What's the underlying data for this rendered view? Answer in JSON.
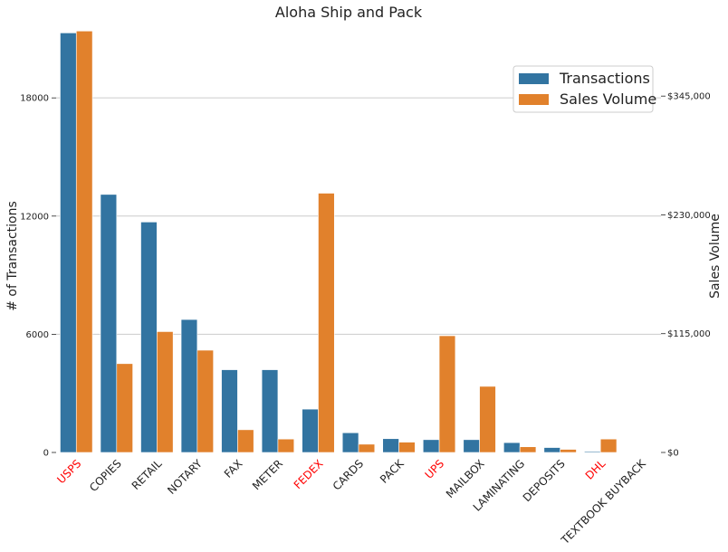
{
  "chart_data": {
    "type": "bar",
    "title": "Aloha Ship and Pack",
    "ylabel_left": "# of Transactions",
    "ylabel_right": "Sales Volume",
    "categories": [
      "USPS",
      "COPIES",
      "RETAIL",
      "NOTARY",
      "FAX",
      "METER",
      "FEDEX",
      "CARDS",
      "PACK",
      "UPS",
      "MAILBOX",
      "LAMINATING",
      "DEPOSITS",
      "DHL",
      "TEXTBOOK BUYBACK"
    ],
    "highlighted_categories": [
      "USPS",
      "FEDEX",
      "UPS",
      "DHL"
    ],
    "highlight_color": "#ff0000",
    "ylim_left": [
      0,
      21500
    ],
    "ylim_right": [
      0,
      410000
    ],
    "left_ticks": [
      0,
      6000,
      12000,
      18000
    ],
    "left_tick_labels": [
      "0",
      "6000",
      "12000",
      "18000"
    ],
    "right_ticks": [
      0,
      115000,
      230000,
      345000
    ],
    "right_tick_labels": [
      "$0",
      "$115,000",
      "$230,000",
      "$345,000"
    ],
    "grid": "horizontal",
    "legend_position": "top-right",
    "series": [
      {
        "name": "Transactions",
        "axis": "left",
        "color": "#3274a1",
        "values": [
          21300,
          13100,
          11700,
          6750,
          4200,
          4200,
          2200,
          1000,
          700,
          650,
          650,
          500,
          250,
          50,
          0
        ]
      },
      {
        "name": "Sales Volume",
        "axis": "right",
        "color": "#e1812c",
        "values": [
          408000,
          86000,
          117000,
          99000,
          22000,
          13000,
          251000,
          8000,
          10000,
          113000,
          64000,
          5500,
          3000,
          13000,
          0
        ]
      }
    ]
  }
}
